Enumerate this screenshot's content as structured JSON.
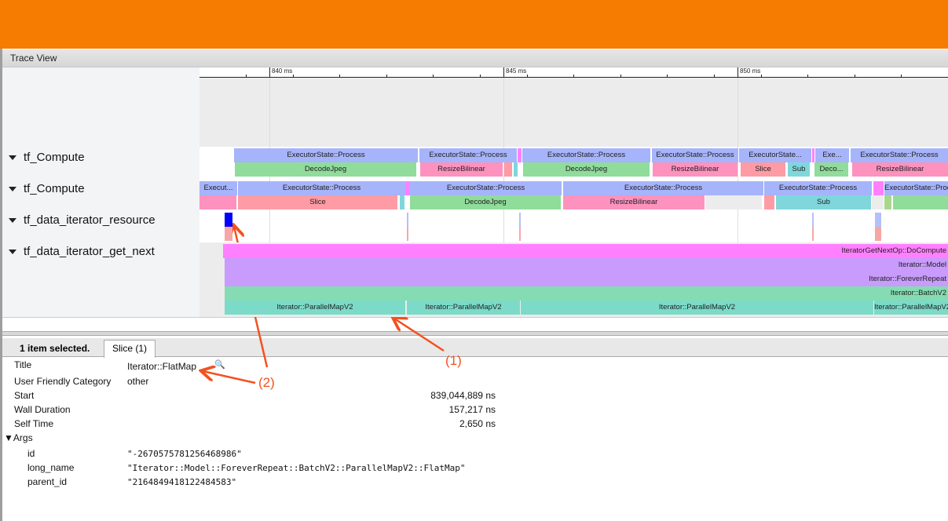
{
  "window": {
    "title": "Trace View"
  },
  "ruler": {
    "labels": [
      "840 ms",
      "845 ms",
      "850 ms"
    ]
  },
  "tracks": [
    {
      "label": "tf_Compute",
      "rows": [
        [
          "ExecutorState::Process",
          "ExecutorState::Process",
          "",
          "ExecutorState::Process",
          "ExecutorState::Process",
          "ExecutorState...",
          "",
          "Exe...",
          "ExecutorState::Process"
        ],
        [
          "DecodeJpeg",
          "ResizeBilinear",
          "",
          "",
          "DecodeJpeg",
          "ResizeBilinear",
          "Slice",
          "Sub",
          "Deco...",
          "ResizeBilinear"
        ]
      ]
    },
    {
      "label": "tf_Compute",
      "rows": [
        [
          "Execut...",
          "ExecutorState::Process",
          "",
          "ExecutorState::Process",
          "ExecutorState::Process",
          "ExecutorState::Process",
          "",
          "ExecutorState::Process"
        ],
        [
          "",
          "Slice",
          "",
          "DecodeJpeg",
          "ResizeBilinear",
          "",
          "",
          "Sub",
          "",
          "",
          ""
        ]
      ]
    },
    {
      "label": "tf_data_iterator_resource",
      "rows": []
    },
    {
      "label": "tf_data_iterator_get_next",
      "rows": [
        [
          "IteratorGetNextOp::DoCompute"
        ],
        [
          "Iterator::Model"
        ],
        [
          "Iterator::ForeverRepeat"
        ],
        [
          "Iterator::BatchV2"
        ],
        [
          "Iterator::ParallelMapV2",
          "Iterator::ParallelMapV2",
          "Iterator::ParallelMapV2",
          "Iterator::ParallelMapV2"
        ]
      ]
    }
  ],
  "colors": {
    "process": "#a6b4fb",
    "decode": "#90dc9b",
    "resize": "#fd92bf",
    "slice": "#fe9ba5",
    "sub": "#7fd7dc",
    "magenta": "#ff80ff",
    "purple": "#c89bfc",
    "batch": "#85dcb3",
    "pmap": "#7bdbc8",
    "selected": "#0000ff",
    "annotation": "#f4511e",
    "orange": "#f57c00"
  },
  "details": {
    "selection": "1 item selected.",
    "tab": "Slice (1)",
    "fields": [
      {
        "label": "Title",
        "value": "Iterator::FlatMap"
      },
      {
        "label": "User Friendly Category",
        "value": "other"
      },
      {
        "label": "Start",
        "value": "839,044,889 ns"
      },
      {
        "label": "Wall Duration",
        "value": "157,217 ns"
      },
      {
        "label": "Self Time",
        "value": "2,650 ns"
      }
    ],
    "args_label": "Args",
    "args": [
      {
        "key": "id",
        "value": "\"-2670575781256468986\""
      },
      {
        "key": "long_name",
        "value": "\"Iterator::Model::ForeverRepeat::BatchV2::ParallelMapV2::FlatMap\""
      },
      {
        "key": "parent_id",
        "value": "\"2164849418122484583\""
      }
    ]
  },
  "annotations": [
    "(1)",
    "(2)"
  ]
}
